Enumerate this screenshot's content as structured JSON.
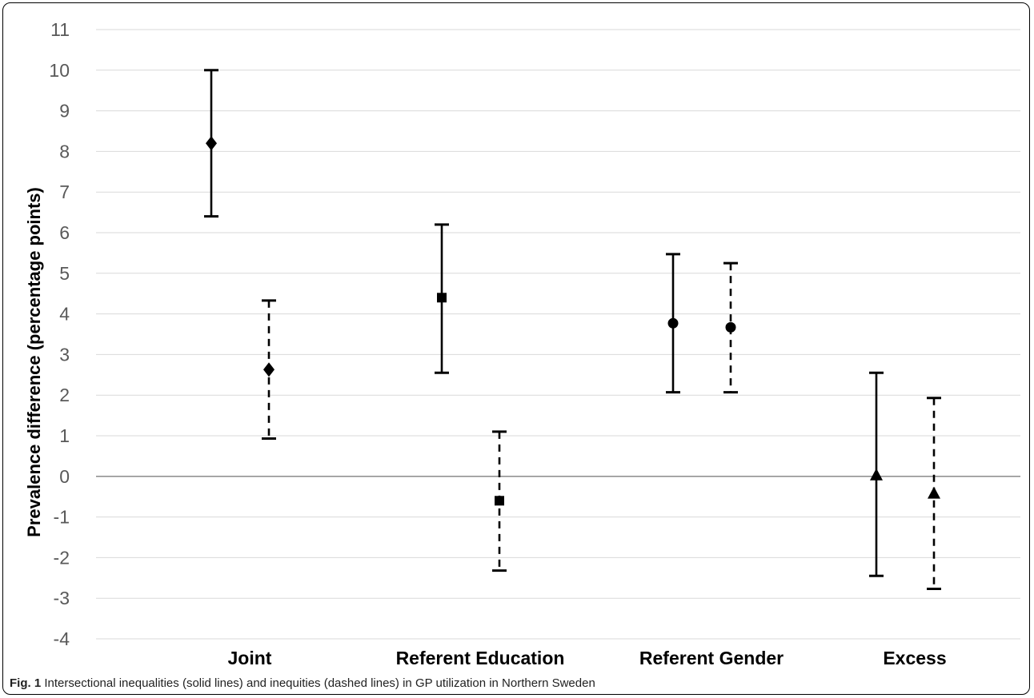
{
  "caption": {
    "label": "Fig. 1",
    "text": "Intersectional inequalities (solid lines) and inequities (dashed lines) in GP utilization in Northern Sweden"
  },
  "chart_data": {
    "type": "errorbar",
    "title": "",
    "xlabel": "",
    "ylabel": "Prevalence difference (percentage points)",
    "ylim": [
      -4,
      11
    ],
    "yticks": [
      11,
      10,
      9,
      8,
      7,
      6,
      5,
      4,
      3,
      2,
      1,
      0,
      -1,
      -2,
      -3,
      -4
    ],
    "grid": true,
    "legend": "none",
    "categories": [
      "Joint",
      "Referent Education",
      "Referent Gender",
      "Excess"
    ],
    "series": [
      {
        "line_style": "solid",
        "points": [
          {
            "category": "Joint",
            "marker": "diamond",
            "value": 8.2,
            "lower": 6.4,
            "upper": 10.0
          },
          {
            "category": "Referent Education",
            "marker": "square",
            "value": 4.4,
            "lower": 2.55,
            "upper": 6.2
          },
          {
            "category": "Referent Gender",
            "marker": "circle",
            "value": 3.77,
            "lower": 2.07,
            "upper": 5.47
          },
          {
            "category": "Excess",
            "marker": "triangle",
            "value": 0.02,
            "lower": -2.45,
            "upper": 2.55
          }
        ]
      },
      {
        "line_style": "dashed",
        "points": [
          {
            "category": "Joint",
            "marker": "diamond",
            "value": 2.63,
            "lower": 0.93,
            "upper": 4.33
          },
          {
            "category": "Referent Education",
            "marker": "square",
            "value": -0.6,
            "lower": -2.32,
            "upper": 1.1
          },
          {
            "category": "Referent Gender",
            "marker": "circle",
            "value": 3.67,
            "lower": 2.07,
            "upper": 5.25
          },
          {
            "category": "Excess",
            "marker": "triangle",
            "value": -0.43,
            "lower": -2.77,
            "upper": 1.93
          }
        ]
      }
    ],
    "colors": {
      "marks": "#000000",
      "grid": "#d9d9d9",
      "zero_line": "#7f7f7f",
      "tick_text": "#595959"
    }
  }
}
